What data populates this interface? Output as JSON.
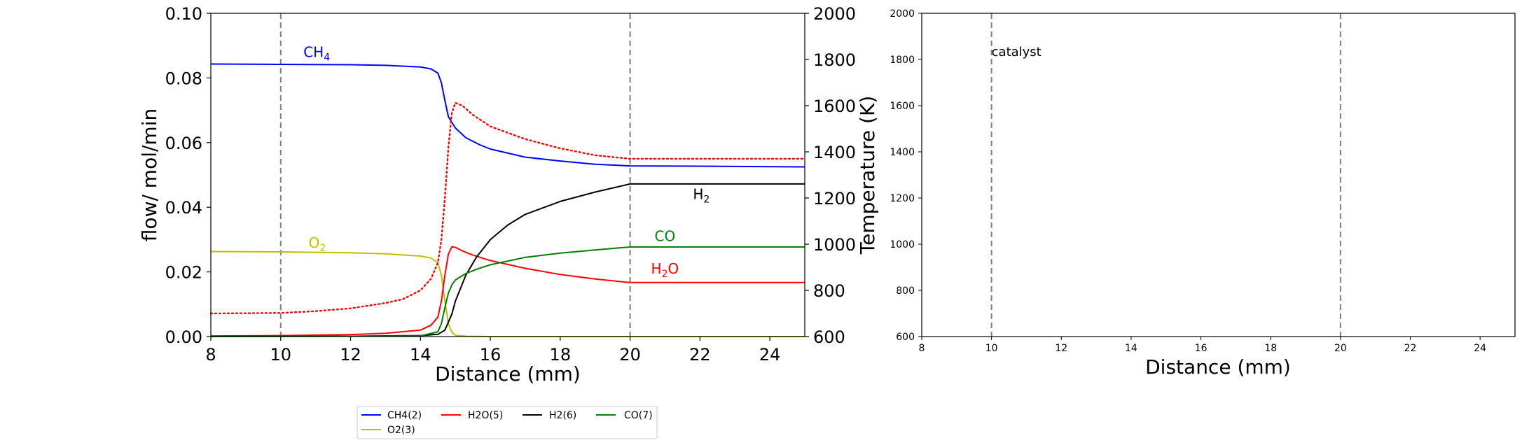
{
  "chart_data": [
    {
      "type": "line",
      "xlabel": "Distance (mm)",
      "ylabel": "flow/ mol/min",
      "y2label": "Temperature (K)",
      "xlim": [
        8,
        25
      ],
      "ylim": [
        0,
        0.1
      ],
      "y2lim": [
        600,
        2000
      ],
      "xticks": [
        "8",
        "10",
        "12",
        "14",
        "16",
        "18",
        "20",
        "22",
        "24"
      ],
      "yticks": [
        "0.00",
        "0.02",
        "0.04",
        "0.06",
        "0.08",
        "0.10"
      ],
      "y2ticks": [
        "600",
        "800",
        "1000",
        "1200",
        "1400",
        "1600",
        "1800",
        "2000"
      ],
      "vlines": [
        10,
        20
      ],
      "legend": {
        "placement": "below",
        "entries": [
          "CH4(2)",
          "O2(3)",
          "H2O(5)",
          "H2(6)",
          "CO(7)"
        ]
      },
      "series": [
        {
          "name": "CH4(2)",
          "color": "#0000ff",
          "axis": "left",
          "style": "solid",
          "x": [
            8,
            10,
            12,
            13,
            14,
            14.3,
            14.5,
            14.6,
            14.7,
            14.8,
            15,
            15.3,
            15.7,
            16,
            17,
            18,
            19,
            20,
            22,
            25
          ],
          "y": [
            0.0843,
            0.0842,
            0.0841,
            0.0839,
            0.0834,
            0.0828,
            0.0815,
            0.0785,
            0.073,
            0.068,
            0.0645,
            0.0615,
            0.0593,
            0.058,
            0.0555,
            0.0543,
            0.0533,
            0.0528,
            0.0527,
            0.0525
          ]
        },
        {
          "name": "O2(3)",
          "color": "#bfbf00",
          "axis": "left",
          "style": "solid",
          "x": [
            8,
            10,
            12,
            13,
            14,
            14.3,
            14.5,
            14.6,
            14.7,
            14.8,
            14.9,
            15,
            15.3,
            16,
            20,
            25
          ],
          "y": [
            0.0263,
            0.0262,
            0.0259,
            0.0256,
            0.0249,
            0.0243,
            0.0228,
            0.019,
            0.011,
            0.004,
            0.0013,
            0.0004,
            0.0001,
            0.0,
            0.0,
            0.0
          ]
        },
        {
          "name": "H2O(5)",
          "color": "#ff0000",
          "axis": "left",
          "style": "solid",
          "x": [
            8,
            10,
            12,
            13,
            14,
            14.3,
            14.5,
            14.6,
            14.7,
            14.8,
            14.9,
            15,
            15.2,
            15.5,
            16,
            17,
            18,
            19,
            20,
            22,
            25
          ],
          "y": [
            0.0002,
            0.0003,
            0.0006,
            0.001,
            0.002,
            0.0035,
            0.006,
            0.011,
            0.019,
            0.0255,
            0.0278,
            0.0276,
            0.0265,
            0.0252,
            0.0235,
            0.0211,
            0.0192,
            0.0178,
            0.0167,
            0.0167,
            0.0167
          ]
        },
        {
          "name": "H2(6)",
          "color": "#000000",
          "axis": "left",
          "style": "solid",
          "x": [
            8,
            12,
            14,
            14.5,
            14.7,
            14.9,
            15,
            15.3,
            15.6,
            16,
            16.5,
            17,
            18,
            19,
            20,
            22,
            25
          ],
          "y": [
            0.0,
            0.0001,
            0.0003,
            0.0007,
            0.002,
            0.007,
            0.011,
            0.019,
            0.0245,
            0.03,
            0.0345,
            0.0378,
            0.0418,
            0.0447,
            0.0472,
            0.0472,
            0.0472
          ]
        },
        {
          "name": "CO(7)",
          "color": "#008000",
          "axis": "left",
          "style": "solid",
          "x": [
            8,
            12,
            14,
            14.5,
            14.6,
            14.7,
            14.8,
            14.9,
            15,
            15.3,
            15.6,
            16,
            17,
            18,
            19,
            20,
            22,
            25
          ],
          "y": [
            0.0,
            0.0001,
            0.0002,
            0.0015,
            0.004,
            0.009,
            0.0135,
            0.016,
            0.0175,
            0.0195,
            0.0208,
            0.0222,
            0.0245,
            0.0258,
            0.0268,
            0.0277,
            0.0277,
            0.0277
          ]
        },
        {
          "name": "",
          "color": "#ff0000",
          "axis": "right",
          "style": "dotted",
          "x": [
            8,
            10,
            11,
            12,
            13,
            13.5,
            14,
            14.3,
            14.5,
            14.6,
            14.7,
            14.8,
            14.9,
            15,
            15.2,
            15.5,
            16,
            17,
            18,
            19,
            20,
            22,
            25
          ],
          "y": [
            700,
            702,
            710,
            722,
            745,
            762,
            800,
            850,
            920,
            1020,
            1200,
            1420,
            1570,
            1612,
            1600,
            1560,
            1510,
            1455,
            1415,
            1385,
            1370,
            1370,
            1370
          ]
        }
      ],
      "annotations": [
        {
          "text": "CH",
          "sub": "4",
          "x": 10.65,
          "y": 0.0865,
          "color": "#0000ff"
        },
        {
          "text": "O",
          "sub": "2",
          "x": 10.8,
          "y": 0.0275,
          "color": "#bfbf00"
        },
        {
          "text": "H",
          "sub": "2",
          "x": 21.8,
          "y": 0.0425,
          "color": "#000000"
        },
        {
          "text": "CO",
          "sub": "",
          "x": 20.7,
          "y": 0.0295,
          "color": "#008000"
        },
        {
          "text": "H",
          "sub": "2",
          "mid": "O",
          "x": 20.6,
          "y": 0.0195,
          "color": "#ff0000"
        }
      ]
    },
    {
      "type": "line",
      "xlabel": "Distance (mm)",
      "xlim": [
        8,
        25
      ],
      "ylim": [
        600,
        2000
      ],
      "xticks": [
        "8",
        "10",
        "12",
        "14",
        "16",
        "18",
        "20",
        "22",
        "24"
      ],
      "yticks": [
        "600",
        "800",
        "1000",
        "1200",
        "1400",
        "1600",
        "1800",
        "2000"
      ],
      "vlines": [
        10,
        20
      ],
      "series": [],
      "annotations": [
        {
          "text": "catalyst",
          "x": 10.0,
          "y": 1815,
          "color": "#000000"
        }
      ]
    }
  ]
}
